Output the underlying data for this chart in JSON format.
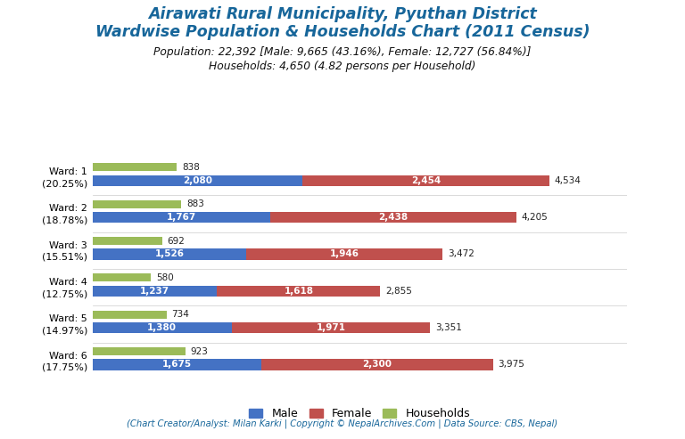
{
  "title_line1": "Airawati Rural Municipality, Pyuthan District",
  "title_line2": "Wardwise Population & Households Chart (2011 Census)",
  "subtitle_line1": "Population: 22,392 [Male: 9,665 (43.16%), Female: 12,727 (56.84%)]",
  "subtitle_line2": "Households: 4,650 (4.82 persons per Household)",
  "footer": "(Chart Creator/Analyst: Milan Karki | Copyright © NepalArchives.Com | Data Source: CBS, Nepal)",
  "wards": [
    {
      "label": "Ward: 1\n(20.25%)",
      "male": 2080,
      "female": 2454,
      "households": 838,
      "total": 4534
    },
    {
      "label": "Ward: 2\n(18.78%)",
      "male": 1767,
      "female": 2438,
      "households": 883,
      "total": 4205
    },
    {
      "label": "Ward: 3\n(15.51%)",
      "male": 1526,
      "female": 1946,
      "households": 692,
      "total": 3472
    },
    {
      "label": "Ward: 4\n(12.75%)",
      "male": 1237,
      "female": 1618,
      "households": 580,
      "total": 2855
    },
    {
      "label": "Ward: 5\n(14.97%)",
      "male": 1380,
      "female": 1971,
      "households": 734,
      "total": 3351
    },
    {
      "label": "Ward: 6\n(17.75%)",
      "male": 1675,
      "female": 2300,
      "households": 923,
      "total": 3975
    }
  ],
  "colors": {
    "male": "#4472C4",
    "female": "#C0504D",
    "households": "#9BBB59",
    "title": "#17669A",
    "footer": "#17669A",
    "background": "#ffffff"
  },
  "hh_bar_height": 0.22,
  "pop_bar_height": 0.3,
  "xlim": [
    0,
    5300
  ],
  "figsize": [
    7.68,
    4.93
  ],
  "dpi": 100
}
